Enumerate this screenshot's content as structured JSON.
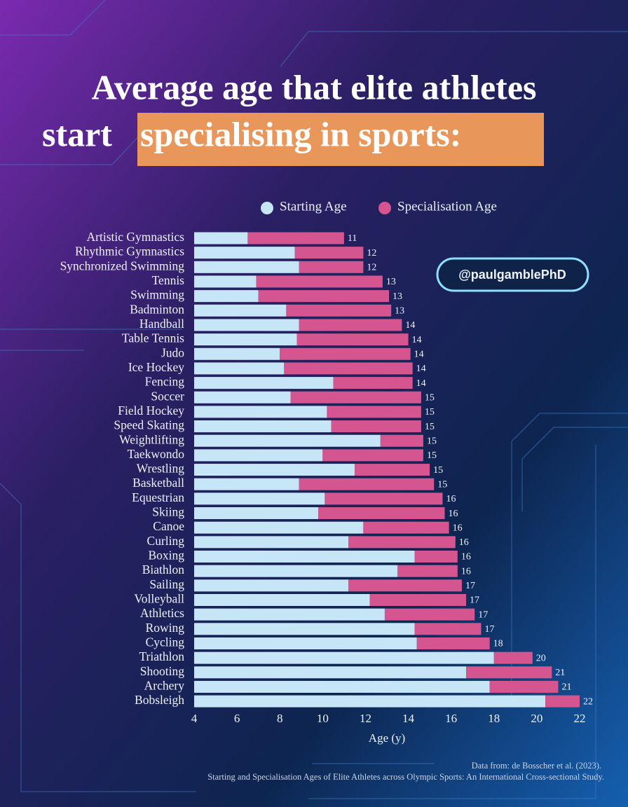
{
  "chart_data": {
    "type": "range-bar",
    "title_parts": [
      "Average age that elite athletes",
      "start",
      "specialising in sports:"
    ],
    "handle": "@paulgamblePhD",
    "x_label": "Age (y)",
    "categories": [
      "Artistic Gymnastics",
      "Rhythmic Gymnastics",
      "Synchronized Swimming",
      "Tennis",
      "Swimming",
      "Badminton",
      "Handball",
      "Table Tennis",
      "Judo",
      "Ice Hockey",
      "Fencing",
      "Soccer",
      "Field Hockey",
      "Speed Skating",
      "Weightlifting",
      "Taekwondo",
      "Wrestling",
      "Basketball",
      "Equestrian",
      "Skiing",
      "Canoe",
      "Curling",
      "Boxing",
      "Biathlon",
      "Sailing",
      "Volleyball",
      "Athletics",
      "Rowing",
      "Cycling",
      "Triathlon",
      "Shooting",
      "Archery",
      "Bobsleigh"
    ],
    "series": [
      {
        "name": "Starting Age",
        "color": "#c6e6f8",
        "values": [
          6.5,
          8.7,
          8.9,
          6.9,
          7.0,
          8.3,
          8.9,
          8.8,
          8.0,
          8.2,
          10.5,
          8.5,
          10.2,
          10.4,
          12.7,
          10.0,
          11.5,
          8.9,
          10.1,
          9.8,
          11.9,
          11.2,
          14.3,
          13.5,
          11.2,
          12.2,
          12.9,
          14.3,
          14.4,
          18.0,
          16.7,
          17.8,
          20.4
        ]
      },
      {
        "name": "Specialisation Age",
        "color": "#d4558f",
        "values": [
          11.0,
          11.9,
          11.9,
          12.8,
          13.1,
          13.2,
          13.7,
          14.0,
          14.1,
          14.2,
          14.2,
          14.6,
          14.6,
          14.6,
          14.7,
          14.7,
          15.0,
          15.2,
          15.6,
          15.7,
          15.9,
          16.2,
          16.3,
          16.3,
          16.5,
          16.7,
          17.1,
          17.4,
          17.8,
          19.8,
          20.7,
          21.0,
          22.0
        ],
        "value_labels": [
          "11",
          "12",
          "12",
          "13",
          "13",
          "13",
          "14",
          "14",
          "14",
          "14",
          "14",
          "15",
          "15",
          "15",
          "15",
          "15",
          "15",
          "15",
          "16",
          "16",
          "16",
          "16",
          "16",
          "16",
          "17",
          "17",
          "17",
          "17",
          "18",
          "20",
          "21",
          "21",
          "22"
        ]
      }
    ],
    "xlim": [
      4,
      22
    ],
    "xticks": [
      4,
      6,
      8,
      10,
      12,
      14,
      16,
      18,
      20,
      22
    ],
    "source": [
      "Data from: de Bosscher et al. (2023).",
      "Starting and Specialisation Ages of Elite Athletes across Olympic Sports: An International Cross-sectional Study."
    ]
  }
}
